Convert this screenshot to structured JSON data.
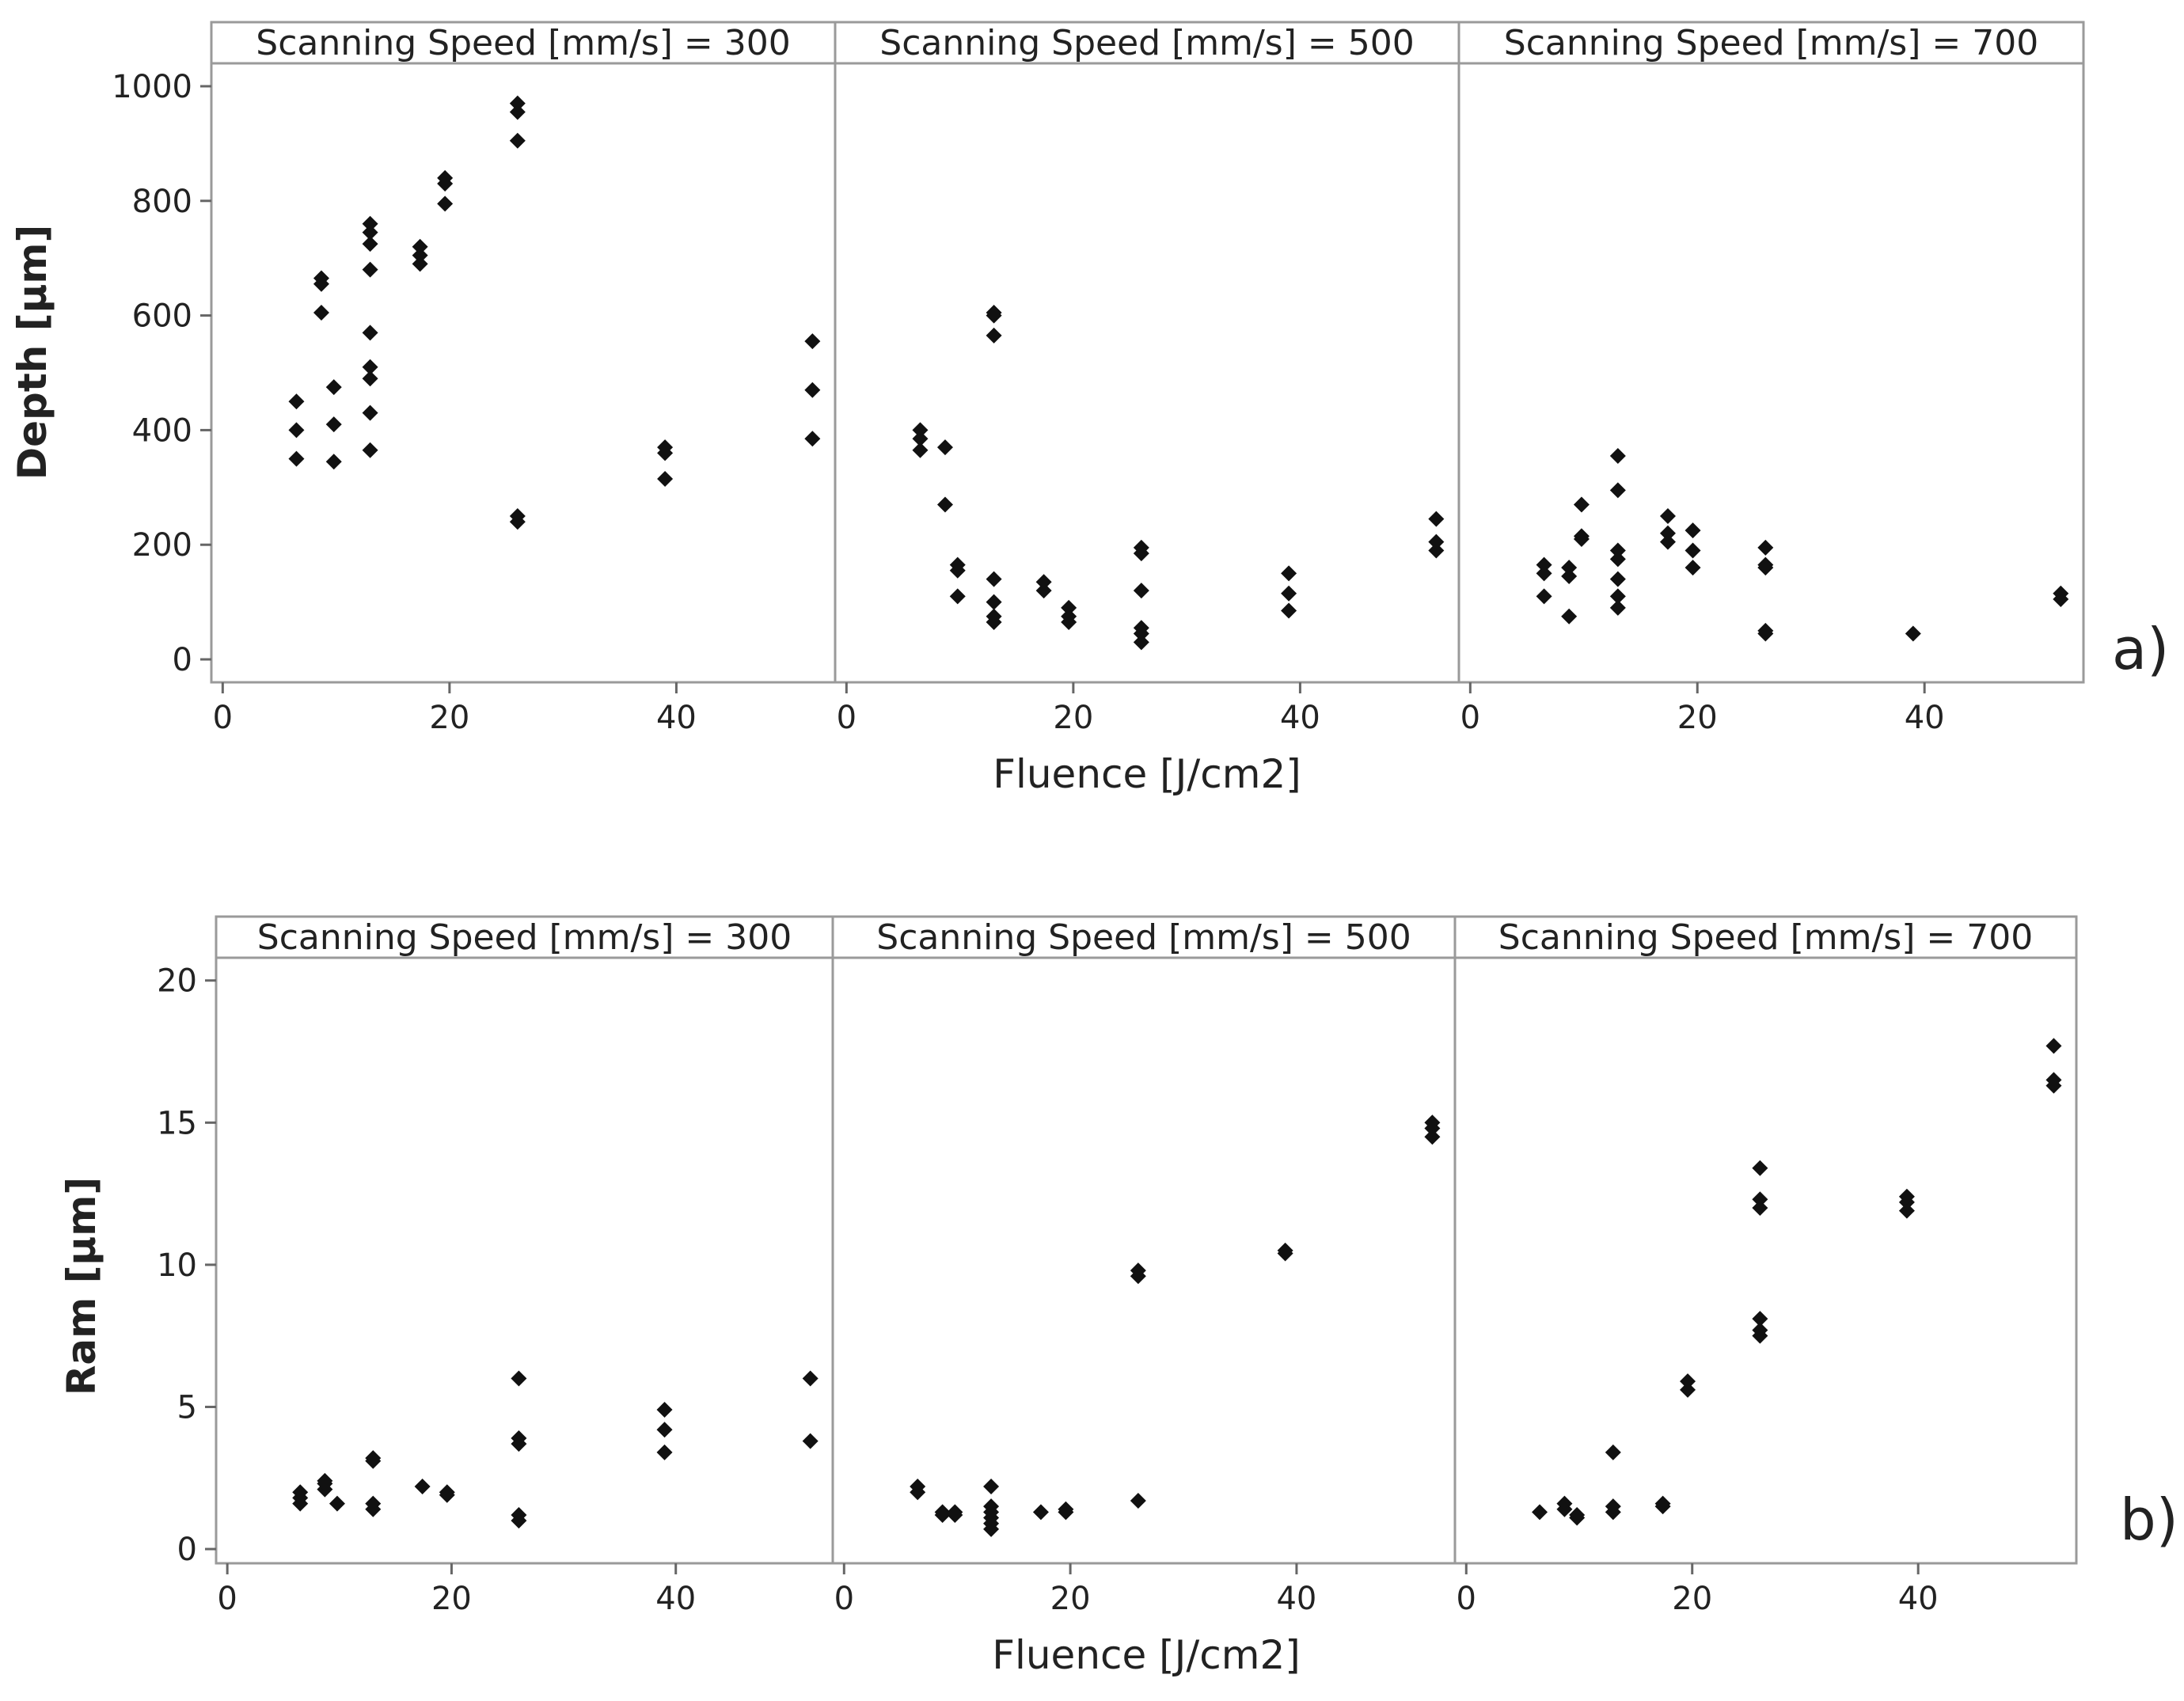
{
  "chart_data": [
    {
      "type": "scatter",
      "panel_label": "a)",
      "ylabel": "Depth [μm]",
      "xlabel": "Fluence [J/cm2]",
      "ylim": [
        -40,
        1040
      ],
      "yticks": [
        0,
        200,
        400,
        600,
        800,
        1000
      ],
      "xlim": [
        -1,
        54
      ],
      "xticks": [
        0,
        20,
        40
      ],
      "panels": [
        {
          "title": "Scanning Speed [mm/s] = 300",
          "points": [
            [
              6.5,
              350
            ],
            [
              6.5,
              400
            ],
            [
              6.5,
              450
            ],
            [
              8.7,
              605
            ],
            [
              8.7,
              655
            ],
            [
              8.7,
              665
            ],
            [
              9.8,
              345
            ],
            [
              9.8,
              410
            ],
            [
              9.8,
              475
            ],
            [
              13,
              365
            ],
            [
              13,
              430
            ],
            [
              13,
              490
            ],
            [
              13,
              510
            ],
            [
              13,
              570
            ],
            [
              13,
              680
            ],
            [
              13,
              725
            ],
            [
              13,
              745
            ],
            [
              13,
              760
            ],
            [
              17.4,
              690
            ],
            [
              17.4,
              705
            ],
            [
              17.4,
              720
            ],
            [
              19.6,
              795
            ],
            [
              19.6,
              830
            ],
            [
              19.6,
              840
            ],
            [
              26,
              240
            ],
            [
              26,
              250
            ],
            [
              26,
              905
            ],
            [
              26,
              955
            ],
            [
              26,
              970
            ],
            [
              39,
              315
            ],
            [
              39,
              360
            ],
            [
              39,
              370
            ],
            [
              52,
              385
            ],
            [
              52,
              470
            ],
            [
              52,
              555
            ]
          ]
        },
        {
          "title": "Scanning Speed [mm/s] = 500",
          "points": [
            [
              6.5,
              365
            ],
            [
              6.5,
              385
            ],
            [
              6.5,
              400
            ],
            [
              8.7,
              270
            ],
            [
              8.7,
              370
            ],
            [
              9.8,
              110
            ],
            [
              9.8,
              155
            ],
            [
              9.8,
              165
            ],
            [
              13,
              65
            ],
            [
              13,
              75
            ],
            [
              13,
              100
            ],
            [
              13,
              140
            ],
            [
              13,
              565
            ],
            [
              13,
              600
            ],
            [
              13,
              605
            ],
            [
              17.4,
              120
            ],
            [
              17.4,
              135
            ],
            [
              19.6,
              65
            ],
            [
              19.6,
              75
            ],
            [
              19.6,
              90
            ],
            [
              26,
              30
            ],
            [
              26,
              45
            ],
            [
              26,
              55
            ],
            [
              26,
              120
            ],
            [
              26,
              185
            ],
            [
              26,
              195
            ],
            [
              39,
              85
            ],
            [
              39,
              115
            ],
            [
              39,
              150
            ],
            [
              52,
              190
            ],
            [
              52,
              205
            ],
            [
              52,
              245
            ]
          ]
        },
        {
          "title": "Scanning Speed [mm/s] = 700",
          "points": [
            [
              6.5,
              110
            ],
            [
              6.5,
              150
            ],
            [
              6.5,
              165
            ],
            [
              8.7,
              75
            ],
            [
              8.7,
              145
            ],
            [
              8.7,
              160
            ],
            [
              9.8,
              210
            ],
            [
              9.8,
              215
            ],
            [
              9.8,
              270
            ],
            [
              13,
              90
            ],
            [
              13,
              110
            ],
            [
              13,
              140
            ],
            [
              13,
              175
            ],
            [
              13,
              190
            ],
            [
              13,
              295
            ],
            [
              13,
              355
            ],
            [
              17.4,
              205
            ],
            [
              17.4,
              220
            ],
            [
              17.4,
              250
            ],
            [
              19.6,
              160
            ],
            [
              19.6,
              190
            ],
            [
              19.6,
              225
            ],
            [
              26,
              45
            ],
            [
              26,
              50
            ],
            [
              26,
              160
            ],
            [
              26,
              165
            ],
            [
              26,
              195
            ],
            [
              39,
              45
            ],
            [
              52,
              105
            ],
            [
              52,
              115
            ]
          ]
        }
      ]
    },
    {
      "type": "scatter",
      "panel_label": "b)",
      "ylabel": "Ram [μm]",
      "xlabel": "Fluence [J/cm2]",
      "ylim": [
        -0.5,
        20.8
      ],
      "yticks": [
        0,
        5,
        10,
        15,
        20
      ],
      "xlim": [
        -1,
        54
      ],
      "xticks": [
        0,
        20,
        40
      ],
      "panels": [
        {
          "title": "Scanning Speed [mm/s] = 300",
          "points": [
            [
              6.5,
              1.6
            ],
            [
              6.5,
              1.8
            ],
            [
              6.5,
              2.0
            ],
            [
              8.7,
              2.1
            ],
            [
              8.7,
              2.3
            ],
            [
              8.7,
              2.4
            ],
            [
              9.8,
              1.6
            ],
            [
              13,
              1.4
            ],
            [
              13,
              1.6
            ],
            [
              13,
              3.1
            ],
            [
              13,
              3.2
            ],
            [
              17.4,
              2.2
            ],
            [
              19.6,
              1.9
            ],
            [
              19.6,
              2.0
            ],
            [
              26,
              1.0
            ],
            [
              26,
              1.2
            ],
            [
              26,
              3.7
            ],
            [
              26,
              3.9
            ],
            [
              26,
              6.0
            ],
            [
              39,
              3.4
            ],
            [
              39,
              4.2
            ],
            [
              39,
              4.9
            ],
            [
              52,
              3.8
            ],
            [
              52,
              6.0
            ]
          ]
        },
        {
          "title": "Scanning Speed [mm/s] = 500",
          "points": [
            [
              6.5,
              2.0
            ],
            [
              6.5,
              2.2
            ],
            [
              8.7,
              1.2
            ],
            [
              8.7,
              1.3
            ],
            [
              9.8,
              1.2
            ],
            [
              9.8,
              1.3
            ],
            [
              13,
              0.7
            ],
            [
              13,
              0.9
            ],
            [
              13,
              1.1
            ],
            [
              13,
              1.3
            ],
            [
              13,
              1.5
            ],
            [
              13,
              2.2
            ],
            [
              17.4,
              1.3
            ],
            [
              19.6,
              1.3
            ],
            [
              19.6,
              1.4
            ],
            [
              26,
              1.7
            ],
            [
              26,
              9.6
            ],
            [
              26,
              9.8
            ],
            [
              39,
              10.4
            ],
            [
              39,
              10.5
            ],
            [
              52,
              14.5
            ],
            [
              52,
              14.8
            ],
            [
              52,
              15.0
            ]
          ]
        },
        {
          "title": "Scanning Speed [mm/s] = 700",
          "points": [
            [
              6.5,
              1.3
            ],
            [
              8.7,
              1.4
            ],
            [
              8.7,
              1.6
            ],
            [
              9.8,
              1.1
            ],
            [
              9.8,
              1.2
            ],
            [
              13,
              1.3
            ],
            [
              13,
              1.5
            ],
            [
              13,
              3.4
            ],
            [
              17.4,
              1.5
            ],
            [
              17.4,
              1.6
            ],
            [
              19.6,
              5.6
            ],
            [
              19.6,
              5.9
            ],
            [
              26,
              7.5
            ],
            [
              26,
              7.7
            ],
            [
              26,
              8.1
            ],
            [
              26,
              12.0
            ],
            [
              26,
              12.3
            ],
            [
              26,
              13.4
            ],
            [
              39,
              11.9
            ],
            [
              39,
              12.2
            ],
            [
              39,
              12.4
            ],
            [
              52,
              16.3
            ],
            [
              52,
              16.5
            ],
            [
              52,
              17.7
            ]
          ]
        }
      ]
    }
  ]
}
